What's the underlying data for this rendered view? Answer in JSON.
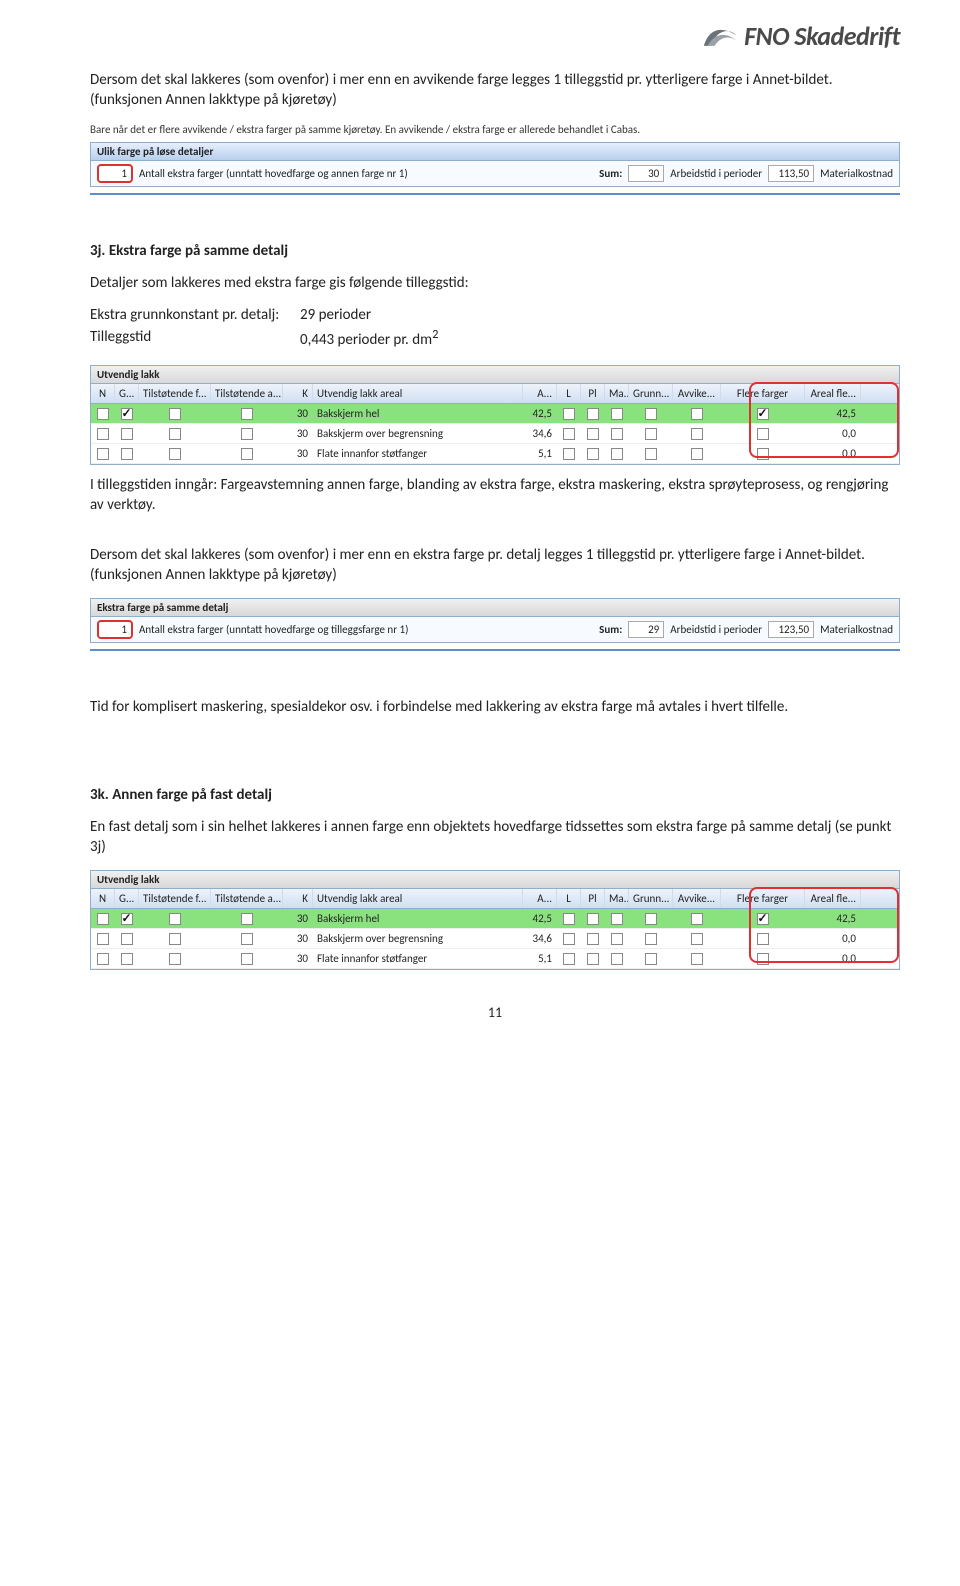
{
  "logo": {
    "text": "FNO Skadedrift"
  },
  "p1": {
    "text": "Dersom det skal lakkeres (som ovenfor) i mer enn en avvikende farge legges 1 tilleggstid pr. ytterligere farge i Annet-bildet. (funksjonen Annen lakktype på kjøretøy)"
  },
  "note1": "Bare når det er flere avvikende / ekstra farger på samme kjøretøy. En avvikende / ekstra farge er allerede behandlet i Cabas.",
  "panel1": {
    "title": "Ulik farge på løse detaljer",
    "value": "1",
    "label": "Antall ekstra farger (unntatt hovedfarge og annen farge nr 1)",
    "sumLabel": "Sum:",
    "sum": "30",
    "tLabel": "Arbeidstid i perioder",
    "t": "113,50",
    "mLabel": "Materialkostnad"
  },
  "h3j": "3j. Ekstra farge på samme detalj",
  "p3j": "Detaljer som lakkeres med ekstra farge gis følgende tilleggstid:",
  "def": {
    "k1": "Ekstra grunnkonstant pr. detalj:",
    "v1": "29 perioder",
    "k2": "Tilleggstid",
    "v2pre": "0,443 perioder pr. dm",
    "v2sup": "2"
  },
  "table": {
    "title": "Utvendig lakk",
    "headers": {
      "n1": "N",
      "n2": "G...",
      "tf": "Tilstøtende f...",
      "ta": "Tilstøtende a...",
      "k": "K",
      "name": "Utvendig lakk areal",
      "a": "A...",
      "s1": "L",
      "s2": "Pl",
      "s3": "Ma...",
      "grun": "Grunn...",
      "avv": "Avvike...",
      "ff": "Flere farger",
      "af": "Areal fle..."
    },
    "rows": [
      {
        "sel": true,
        "n2": true,
        "k": "30",
        "name": "Bakskjerm hel",
        "a": "42,5",
        "s1": false,
        "s2": false,
        "s3": false,
        "grun": false,
        "avv": false,
        "ff": true,
        "af": "42,5"
      },
      {
        "sel": false,
        "n2": false,
        "k": "30",
        "name": "Bakskjerm over begrensning",
        "a": "34,6",
        "s1": false,
        "s2": false,
        "s3": false,
        "grun": false,
        "avv": false,
        "ff": false,
        "af": "0,0"
      },
      {
        "sel": false,
        "n2": false,
        "k": "30",
        "name": "Flate innanfor støtfanger",
        "a": "5,1",
        "s1": false,
        "s2": false,
        "s3": false,
        "grun": false,
        "avv": false,
        "ff": false,
        "af": "0,0"
      }
    ]
  },
  "p3j2": "I tilleggstiden inngår: Fargeavstemning annen farge, blanding av ekstra farge, ekstra maskering, ekstra sprøyteprosess, og rengjøring av verktøy.",
  "p3j3": "Dersom det skal lakkeres (som ovenfor) i mer enn en ekstra farge pr. detalj legges 1 tilleggstid pr. ytterligere farge i Annet-bildet. (funksjonen Annen lakktype på kjøretøy)",
  "panel2": {
    "title": "Ekstra farge på samme detalj",
    "value": "1",
    "label": "Antall ekstra farger (unntatt hovedfarge og tilleggsfarge nr 1)",
    "sumLabel": "Sum:",
    "sum": "29",
    "tLabel": "Arbeidstid i perioder",
    "t": "123,50",
    "mLabel": "Materialkostnad"
  },
  "p4": "Tid for komplisert maskering, spesialdekor osv. i forbindelse med lakkering av ekstra farge må avtales i hvert tilfelle.",
  "h3k": "3k. Annen farge på fast detalj",
  "p3k": "En fast detalj som i sin helhet lakkeres i annen farge enn objektets hovedfarge tidssettes som ekstra farge på samme detalj (se punkt 3j)",
  "pageNum": "11"
}
